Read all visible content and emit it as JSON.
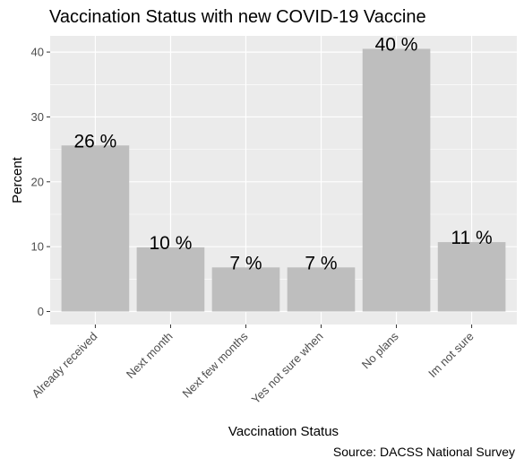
{
  "chart_data": {
    "type": "bar",
    "title": "Vaccination Status with new COVID-19 Vaccine",
    "xlabel": "Vaccination Status",
    "ylabel": "Percent",
    "caption": "Source: DACSS National Survey",
    "categories": [
      "Already received",
      "Next month",
      "Next few months",
      "Yes not sure when",
      "No plans",
      "Im not sure"
    ],
    "values": [
      25.6,
      9.9,
      6.8,
      6.8,
      40.5,
      10.7
    ],
    "data_labels": [
      "26 %",
      "10 %",
      "7 %",
      "7 %",
      "40 %",
      "11 %"
    ],
    "yticks": [
      0,
      10,
      20,
      30,
      40
    ],
    "ylim": [
      -2,
      42.5
    ],
    "grid": true,
    "legend": "none",
    "colors": {
      "bar": "#bebebe",
      "panel": "#ebebeb",
      "grid": "#ffffff"
    }
  }
}
